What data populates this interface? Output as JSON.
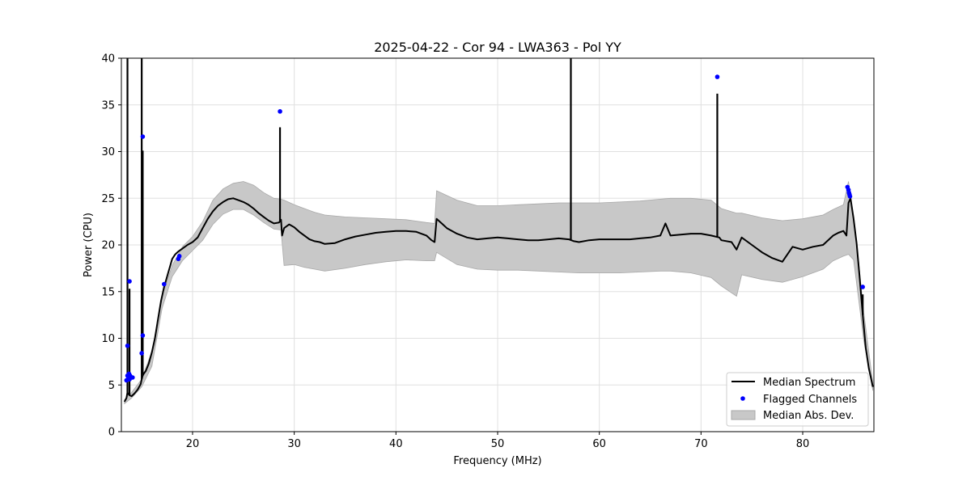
{
  "chart_data": {
    "type": "line",
    "title": "2025-04-22 - Cor 94 - LWA363 - Pol YY",
    "xlabel": "Frequency (MHz)",
    "ylabel": "Power (CPU)",
    "xlim": [
      13,
      87
    ],
    "ylim": [
      0,
      40
    ],
    "xticks": [
      20,
      30,
      40,
      50,
      60,
      70,
      80
    ],
    "yticks": [
      0,
      5,
      10,
      15,
      20,
      25,
      30,
      35,
      40
    ],
    "grid": true,
    "legend_position": "lower-right",
    "colors": {
      "median": "#000000",
      "flagged": "#0000ff",
      "band_fill": "#c8c8c8",
      "band_edge": "#a8a8a8",
      "grid": "#e0e0e0"
    },
    "series": [
      {
        "name": "Median Spectrum",
        "kind": "line",
        "x": [
          13.3,
          13.5,
          13.6,
          13.7,
          13.8,
          14.0,
          14.3,
          14.6,
          14.9,
          15.0,
          15.1,
          15.2,
          15.4,
          15.7,
          16.0,
          16.3,
          16.6,
          16.9,
          17.2,
          17.6,
          18.0,
          18.3,
          18.6,
          19.0,
          19.5,
          20.0,
          20.5,
          21.0,
          21.5,
          22.0,
          22.5,
          23.0,
          23.5,
          24.0,
          24.5,
          25.0,
          25.5,
          26.0,
          26.5,
          27.0,
          27.5,
          28.0,
          28.5,
          28.7,
          28.8,
          29.0,
          29.5,
          30.0,
          30.5,
          31.0,
          31.5,
          32.0,
          32.5,
          33.0,
          34.0,
          35.0,
          36.0,
          37.0,
          38.0,
          39.0,
          40.0,
          41.0,
          42.0,
          43.0,
          43.5,
          43.8,
          44.0,
          44.5,
          45.0,
          46.0,
          47.0,
          48.0,
          49.0,
          50.0,
          51.0,
          52.0,
          53.0,
          54.0,
          55.0,
          56.0,
          57.0,
          57.5,
          58.0,
          59.0,
          60.0,
          61.0,
          62.0,
          63.0,
          64.0,
          65.0,
          66.0,
          66.5,
          67.0,
          68.0,
          69.0,
          70.0,
          71.0,
          71.8,
          72.0,
          73.0,
          73.5,
          74.0,
          75.0,
          76.0,
          77.0,
          78.0,
          79.0,
          80.0,
          81.0,
          82.0,
          83.0,
          83.5,
          84.0,
          84.3,
          84.5,
          84.7,
          85.0,
          85.3,
          85.6,
          85.9,
          86.2,
          86.5,
          86.9
        ],
        "y": [
          3.2,
          3.6,
          4.2,
          4.0,
          3.9,
          3.8,
          4.1,
          4.5,
          5.1,
          5.6,
          6.0,
          6.2,
          6.5,
          7.3,
          8.5,
          10.0,
          12.0,
          14.0,
          15.5,
          17.0,
          18.5,
          19.0,
          19.3,
          19.6,
          20.0,
          20.3,
          20.8,
          21.8,
          22.8,
          23.6,
          24.2,
          24.6,
          24.9,
          25.0,
          24.8,
          24.6,
          24.3,
          23.9,
          23.4,
          23.0,
          22.6,
          22.3,
          22.4,
          22.7,
          21.0,
          21.8,
          22.2,
          21.9,
          21.4,
          21.0,
          20.6,
          20.4,
          20.3,
          20.1,
          20.2,
          20.6,
          20.9,
          21.1,
          21.3,
          21.4,
          21.5,
          21.5,
          21.4,
          21.0,
          20.5,
          20.3,
          22.8,
          22.3,
          21.8,
          21.2,
          20.8,
          20.6,
          20.7,
          20.8,
          20.7,
          20.6,
          20.5,
          20.5,
          20.6,
          20.7,
          20.6,
          20.4,
          20.3,
          20.5,
          20.6,
          20.6,
          20.6,
          20.6,
          20.7,
          20.8,
          21.0,
          22.3,
          21.0,
          21.1,
          21.2,
          21.2,
          21.0,
          20.8,
          20.5,
          20.3,
          19.5,
          20.8,
          20.0,
          19.2,
          18.6,
          18.2,
          19.8,
          19.5,
          19.8,
          20.0,
          21.0,
          21.3,
          21.5,
          21.0,
          24.5,
          25.0,
          22.8,
          20.2,
          16.5,
          12.5,
          9.0,
          6.8,
          4.8
        ]
      },
      {
        "name": "Median Abs. Dev.",
        "kind": "band",
        "x": [
          13.3,
          14.0,
          15.0,
          16.0,
          17.0,
          18.0,
          19.0,
          20.0,
          21.0,
          22.0,
          23.0,
          24.0,
          25.0,
          26.0,
          27.0,
          28.0,
          28.7,
          29.0,
          30.0,
          31.0,
          32.0,
          33.0,
          35.0,
          37.0,
          39.0,
          41.0,
          43.0,
          43.8,
          44.0,
          46.0,
          48.0,
          50.0,
          52.0,
          54.0,
          56.0,
          58.0,
          60.0,
          62.0,
          64.0,
          66.0,
          67.0,
          69.0,
          71.0,
          72.0,
          73.5,
          74.0,
          76.0,
          78.0,
          80.0,
          82.0,
          83.0,
          84.0,
          84.5,
          85.0,
          85.5,
          86.0,
          86.9
        ],
        "upper": [
          3.4,
          4.2,
          5.6,
          8.6,
          14.5,
          17.8,
          19.8,
          20.9,
          22.5,
          24.8,
          26.0,
          26.6,
          26.8,
          26.4,
          25.6,
          25.0,
          24.9,
          24.8,
          24.3,
          23.9,
          23.5,
          23.2,
          23.0,
          22.9,
          22.8,
          22.7,
          22.4,
          22.3,
          25.8,
          24.8,
          24.2,
          24.2,
          24.3,
          24.4,
          24.5,
          24.5,
          24.5,
          24.6,
          24.7,
          24.9,
          25.0,
          25.0,
          24.8,
          23.9,
          23.4,
          23.4,
          22.9,
          22.6,
          22.8,
          23.2,
          23.8,
          24.3,
          26.8,
          22.8,
          18.2,
          12.8,
          5.2
        ],
        "lower": [
          3.0,
          3.6,
          4.8,
          7.0,
          13.2,
          16.6,
          18.3,
          19.4,
          20.5,
          22.2,
          23.3,
          23.8,
          23.8,
          23.2,
          22.4,
          21.7,
          21.6,
          17.8,
          17.9,
          17.6,
          17.4,
          17.2,
          17.5,
          17.9,
          18.2,
          18.4,
          18.3,
          18.3,
          19.2,
          17.9,
          17.4,
          17.3,
          17.3,
          17.2,
          17.1,
          17.0,
          17.0,
          17.0,
          17.1,
          17.2,
          17.2,
          17.0,
          16.5,
          15.6,
          14.5,
          16.8,
          16.3,
          16.0,
          16.6,
          17.4,
          18.3,
          18.8,
          19.0,
          18.4,
          14.2,
          9.8,
          4.4
        ]
      },
      {
        "name": "Flagged Channels",
        "kind": "points",
        "points": [
          [
            13.5,
            5.5
          ],
          [
            13.6,
            6.0
          ],
          [
            13.7,
            5.8
          ],
          [
            13.75,
            6.2
          ],
          [
            13.8,
            5.6
          ],
          [
            13.85,
            6.0
          ],
          [
            13.6,
            9.2
          ],
          [
            13.8,
            16.1
          ],
          [
            14.1,
            5.8
          ],
          [
            15.1,
            31.6
          ],
          [
            15.1,
            10.3
          ],
          [
            15.0,
            8.4
          ],
          [
            17.2,
            15.8
          ],
          [
            18.6,
            18.5
          ],
          [
            18.7,
            18.8
          ],
          [
            28.6,
            34.3
          ],
          [
            71.6,
            38.0
          ],
          [
            84.4,
            26.2
          ],
          [
            84.5,
            25.9
          ],
          [
            84.55,
            25.6
          ],
          [
            84.6,
            25.4
          ],
          [
            84.65,
            25.2
          ],
          [
            85.9,
            15.5
          ]
        ]
      }
    ],
    "spikes": [
      {
        "x": 13.6,
        "y": 40
      },
      {
        "x": 13.8,
        "y": 15.3
      },
      {
        "x": 15.0,
        "y": 40
      },
      {
        "x": 15.1,
        "y": 30.1
      },
      {
        "x": 28.6,
        "y": 32.6
      },
      {
        "x": 57.2,
        "y": 40
      },
      {
        "x": 71.6,
        "y": 36.2
      },
      {
        "x": 85.9,
        "y": 14.7
      }
    ]
  }
}
